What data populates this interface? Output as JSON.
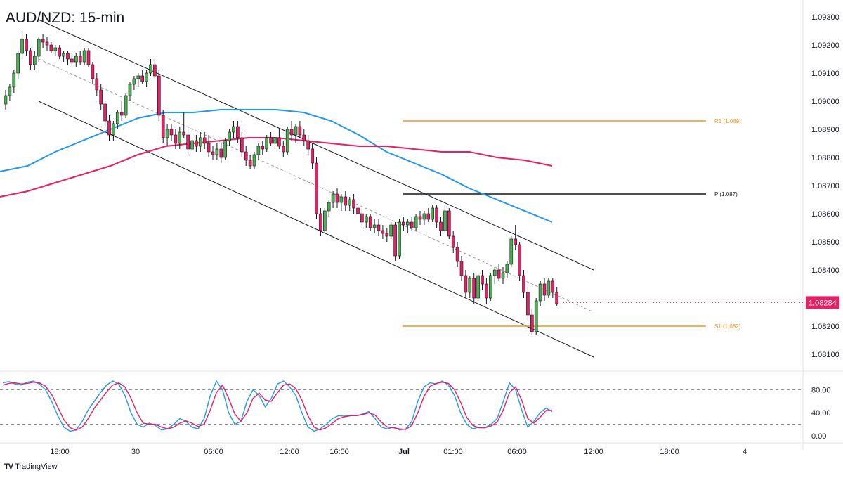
{
  "chart_data": {
    "type": "candlestick",
    "title": "AUD/NZD: 15-min",
    "price_axis": {
      "ticks": [
        "1.09300",
        "1.09200",
        "1.09100",
        "1.09000",
        "1.08900",
        "1.08800",
        "1.08700",
        "1.08600",
        "1.08500",
        "1.08400",
        "1.08200",
        "1.08100"
      ],
      "tick_values": [
        1.093,
        1.092,
        1.091,
        1.09,
        1.089,
        1.088,
        1.087,
        1.086,
        1.085,
        1.084,
        1.082,
        1.081
      ],
      "range": [
        1.0804,
        1.0936
      ]
    },
    "last_price": {
      "label": "1.08284",
      "value": 1.08284,
      "color": "#e91e63"
    },
    "time_axis": {
      "labels": [
        "18:00",
        "30",
        "06:00",
        "12:00",
        "16:00",
        "Jul",
        "01:00",
        "06:00",
        "12:00",
        "18:00",
        "4"
      ]
    },
    "levels": [
      {
        "name": "R1",
        "label": "R1 (1.089)",
        "value": 1.0893,
        "color": "#f7931a"
      },
      {
        "name": "P",
        "label": "P (1.087)",
        "value": 1.0867,
        "color": "#131722"
      },
      {
        "name": "S1",
        "label": "S1 (1.082)",
        "value": 1.082,
        "color": "#f7931a"
      }
    ],
    "channel": {
      "upper": [
        [
          1.0929,
          0
        ],
        [
          1.084,
          1
        ]
      ],
      "middle": [
        [
          1.0915,
          0
        ],
        [
          1.0825,
          1
        ]
      ],
      "lower": [
        [
          1.09,
          0
        ],
        [
          1.0809,
          1
        ]
      ]
    },
    "candles": [
      [
        1.0899,
        1.0904,
        1.0897,
        1.0902
      ],
      [
        1.0902,
        1.0906,
        1.09,
        1.0905
      ],
      [
        1.0905,
        1.0911,
        1.0903,
        1.091
      ],
      [
        1.091,
        1.0918,
        1.0908,
        1.0917
      ],
      [
        1.0917,
        1.0925,
        1.0915,
        1.0922
      ],
      [
        1.0922,
        1.0924,
        1.0916,
        1.0918
      ],
      [
        1.0918,
        1.0919,
        1.0911,
        1.0913
      ],
      [
        1.0913,
        1.0918,
        1.0911,
        1.0916
      ],
      [
        1.0916,
        1.0923,
        1.0914,
        1.0922
      ],
      [
        1.0922,
        1.0924,
        1.0919,
        1.0921
      ],
      [
        1.0921,
        1.0923,
        1.0918,
        1.092
      ],
      [
        1.092,
        1.0921,
        1.0917,
        1.0918
      ],
      [
        1.0918,
        1.092,
        1.0916,
        1.0919
      ],
      [
        1.0919,
        1.092,
        1.0915,
        1.0916
      ],
      [
        1.0916,
        1.0918,
        1.0914,
        1.0917
      ],
      [
        1.0917,
        1.0918,
        1.0913,
        1.0915
      ],
      [
        1.0915,
        1.0917,
        1.0912,
        1.0914
      ],
      [
        1.0914,
        1.0917,
        1.0912,
        1.0916
      ],
      [
        1.0916,
        1.0918,
        1.0913,
        1.0914
      ],
      [
        1.0914,
        1.0919,
        1.0913,
        1.0918
      ],
      [
        1.0918,
        1.0919,
        1.0912,
        1.0913
      ],
      [
        1.0913,
        1.0914,
        1.0906,
        1.0908
      ],
      [
        1.0908,
        1.091,
        1.0902,
        1.0904
      ],
      [
        1.0904,
        1.0906,
        1.0897,
        1.0899
      ],
      [
        1.0899,
        1.09,
        1.0891,
        1.0893
      ],
      [
        1.0893,
        1.0895,
        1.0886,
        1.0888
      ],
      [
        1.0888,
        1.0893,
        1.0886,
        1.0892
      ],
      [
        1.0892,
        1.0897,
        1.089,
        1.0896
      ],
      [
        1.0896,
        1.09,
        1.0893,
        1.0895
      ],
      [
        1.0895,
        1.0903,
        1.0894,
        1.0902
      ],
      [
        1.0902,
        1.0907,
        1.09,
        1.0906
      ],
      [
        1.0906,
        1.0909,
        1.0904,
        1.0908
      ],
      [
        1.0908,
        1.091,
        1.0905,
        1.0909
      ],
      [
        1.0909,
        1.0911,
        1.0906,
        1.0907
      ],
      [
        1.0907,
        1.0911,
        1.0905,
        1.091
      ],
      [
        1.091,
        1.0915,
        1.0909,
        1.0913
      ],
      [
        1.0913,
        1.0915,
        1.0908,
        1.0909
      ],
      [
        1.0909,
        1.0911,
        1.0893,
        1.0895
      ],
      [
        1.0895,
        1.0897,
        1.0885,
        1.0887
      ],
      [
        1.0887,
        1.0892,
        1.0884,
        1.089
      ],
      [
        1.089,
        1.0892,
        1.0886,
        1.0888
      ],
      [
        1.0888,
        1.089,
        1.0883,
        1.0885
      ],
      [
        1.0885,
        1.0891,
        1.0883,
        1.0889
      ],
      [
        1.0889,
        1.0896,
        1.0887,
        1.0888
      ],
      [
        1.0888,
        1.089,
        1.0881,
        1.0883
      ],
      [
        1.0883,
        1.0887,
        1.088,
        1.0886
      ],
      [
        1.0886,
        1.0888,
        1.0882,
        1.0884
      ],
      [
        1.0884,
        1.0889,
        1.0882,
        1.0887
      ],
      [
        1.0887,
        1.0889,
        1.0883,
        1.0885
      ],
      [
        1.0885,
        1.0888,
        1.088,
        1.0882
      ],
      [
        1.0882,
        1.0884,
        1.0879,
        1.0881
      ],
      [
        1.0881,
        1.0885,
        1.0879,
        1.0883
      ],
      [
        1.0883,
        1.0885,
        1.0878,
        1.088
      ],
      [
        1.088,
        1.0887,
        1.0879,
        1.0886
      ],
      [
        1.0886,
        1.089,
        1.0884,
        1.0889
      ],
      [
        1.0889,
        1.0893,
        1.0887,
        1.0891
      ],
      [
        1.0891,
        1.0893,
        1.0885,
        1.0887
      ],
      [
        1.0887,
        1.0889,
        1.088,
        1.0882
      ],
      [
        1.0882,
        1.0884,
        1.0877,
        1.0879
      ],
      [
        1.0879,
        1.0881,
        1.0876,
        1.0877
      ],
      [
        1.0877,
        1.0882,
        1.0876,
        1.0881
      ],
      [
        1.0881,
        1.0885,
        1.0879,
        1.0884
      ],
      [
        1.0884,
        1.0886,
        1.0881,
        1.0883
      ],
      [
        1.0883,
        1.0888,
        1.0882,
        1.0887
      ],
      [
        1.0887,
        1.0889,
        1.0884,
        1.0885
      ],
      [
        1.0885,
        1.0888,
        1.0883,
        1.0887
      ],
      [
        1.0887,
        1.089,
        1.0883,
        1.0884
      ],
      [
        1.0884,
        1.0886,
        1.088,
        1.0882
      ],
      [
        1.0882,
        1.0891,
        1.0881,
        1.089
      ],
      [
        1.089,
        1.0893,
        1.0886,
        1.0888
      ],
      [
        1.0888,
        1.0892,
        1.0885,
        1.0891
      ],
      [
        1.0891,
        1.0893,
        1.0887,
        1.0888
      ],
      [
        1.0888,
        1.089,
        1.0884,
        1.0886
      ],
      [
        1.0886,
        1.0888,
        1.0881,
        1.0883
      ],
      [
        1.0883,
        1.0885,
        1.0876,
        1.0878
      ],
      [
        1.0878,
        1.088,
        1.0858,
        1.086
      ],
      [
        1.086,
        1.0862,
        1.0852,
        1.0854
      ],
      [
        1.0854,
        1.0862,
        1.0853,
        1.0861
      ],
      [
        1.0861,
        1.0865,
        1.0859,
        1.0864
      ],
      [
        1.0864,
        1.0868,
        1.0862,
        1.0867
      ],
      [
        1.0867,
        1.0869,
        1.0862,
        1.0864
      ],
      [
        1.0864,
        1.0867,
        1.0861,
        1.0866
      ],
      [
        1.0866,
        1.0868,
        1.0861,
        1.0863
      ],
      [
        1.0863,
        1.0866,
        1.0861,
        1.0865
      ],
      [
        1.0865,
        1.0867,
        1.086,
        1.0862
      ],
      [
        1.0862,
        1.0864,
        1.0858,
        1.086
      ],
      [
        1.086,
        1.0862,
        1.0855,
        1.0857
      ],
      [
        1.0857,
        1.086,
        1.0855,
        1.0859
      ],
      [
        1.0859,
        1.086,
        1.0854,
        1.0855
      ],
      [
        1.0855,
        1.0858,
        1.0853,
        1.0856
      ],
      [
        1.0856,
        1.0858,
        1.0852,
        1.0854
      ],
      [
        1.0854,
        1.0856,
        1.0851,
        1.0853
      ],
      [
        1.0853,
        1.0855,
        1.085,
        1.0852
      ],
      [
        1.0852,
        1.0857,
        1.0851,
        1.0856
      ],
      [
        1.0856,
        1.0857,
        1.0843,
        1.0845
      ],
      [
        1.0845,
        1.0858,
        1.0844,
        1.0857
      ],
      [
        1.0857,
        1.0859,
        1.0854,
        1.0856
      ],
      [
        1.0856,
        1.0858,
        1.0853,
        1.0857
      ],
      [
        1.0857,
        1.0859,
        1.0854,
        1.0855
      ],
      [
        1.0855,
        1.086,
        1.0854,
        1.0859
      ],
      [
        1.0859,
        1.0861,
        1.0856,
        1.0858
      ],
      [
        1.0858,
        1.0861,
        1.0856,
        1.086
      ],
      [
        1.086,
        1.0862,
        1.0857,
        1.0858
      ],
      [
        1.0858,
        1.0863,
        1.0857,
        1.0862
      ],
      [
        1.0862,
        1.0863,
        1.0855,
        1.0857
      ],
      [
        1.0857,
        1.0859,
        1.0852,
        1.0854
      ],
      [
        1.0854,
        1.0863,
        1.0853,
        1.0861
      ],
      [
        1.0861,
        1.0862,
        1.0851,
        1.0852
      ],
      [
        1.0852,
        1.0854,
        1.0846,
        1.0848
      ],
      [
        1.0848,
        1.085,
        1.0841,
        1.0843
      ],
      [
        1.0843,
        1.0845,
        1.0836,
        1.0838
      ],
      [
        1.0838,
        1.084,
        1.083,
        1.0832
      ],
      [
        1.0832,
        1.0838,
        1.083,
        1.0837
      ],
      [
        1.0837,
        1.0839,
        1.0828,
        1.083
      ],
      [
        1.083,
        1.0839,
        1.0829,
        1.0838
      ],
      [
        1.0838,
        1.084,
        1.0833,
        1.0835
      ],
      [
        1.0835,
        1.0837,
        1.0828,
        1.083
      ],
      [
        1.083,
        1.0839,
        1.0829,
        1.0838
      ],
      [
        1.0838,
        1.0841,
        1.0835,
        1.084
      ],
      [
        1.084,
        1.0842,
        1.0836,
        1.0837
      ],
      [
        1.0837,
        1.0841,
        1.0835,
        1.0839
      ],
      [
        1.0839,
        1.0843,
        1.0837,
        1.0842
      ],
      [
        1.0842,
        1.0852,
        1.0841,
        1.0851
      ],
      [
        1.0851,
        1.0856,
        1.0847,
        1.0849
      ],
      [
        1.0849,
        1.085,
        1.0836,
        1.0838
      ],
      [
        1.0838,
        1.084,
        1.083,
        1.0832
      ],
      [
        1.0832,
        1.0834,
        1.0822,
        1.0824
      ],
      [
        1.0824,
        1.0826,
        1.0817,
        1.0818
      ],
      [
        1.0818,
        1.083,
        1.0817,
        1.0829
      ],
      [
        1.0829,
        1.0836,
        1.0827,
        1.0835
      ],
      [
        1.0835,
        1.0837,
        1.0829,
        1.0831
      ],
      [
        1.0831,
        1.0837,
        1.083,
        1.0836
      ],
      [
        1.0836,
        1.0837,
        1.083,
        1.0832
      ],
      [
        1.0832,
        1.0834,
        1.0827,
        1.0828
      ]
    ],
    "sma_fast": {
      "color": "#2196f3",
      "points": [
        [
          0,
          1.0875
        ],
        [
          0.05,
          1.0877
        ],
        [
          0.1,
          1.0882
        ],
        [
          0.15,
          1.0886
        ],
        [
          0.2,
          1.089
        ],
        [
          0.25,
          1.0894
        ],
        [
          0.3,
          1.0896
        ],
        [
          0.35,
          1.0896
        ],
        [
          0.4,
          1.0897
        ],
        [
          0.45,
          1.0897
        ],
        [
          0.5,
          1.0897
        ],
        [
          0.55,
          1.0896
        ],
        [
          0.6,
          1.0893
        ],
        [
          0.65,
          1.0888
        ],
        [
          0.7,
          1.0882
        ],
        [
          0.75,
          1.0878
        ],
        [
          0.8,
          1.0874
        ],
        [
          0.85,
          1.0869
        ],
        [
          0.9,
          1.0865
        ],
        [
          0.95,
          1.0861
        ],
        [
          1.0,
          1.0857
        ]
      ]
    },
    "sma_slow": {
      "color": "#e91e63",
      "points": [
        [
          0,
          1.0866
        ],
        [
          0.05,
          1.0868
        ],
        [
          0.1,
          1.0871
        ],
        [
          0.15,
          1.0874
        ],
        [
          0.2,
          1.0877
        ],
        [
          0.25,
          1.0881
        ],
        [
          0.3,
          1.0884
        ],
        [
          0.35,
          1.0885
        ],
        [
          0.4,
          1.0886
        ],
        [
          0.45,
          1.0887
        ],
        [
          0.5,
          1.0887
        ],
        [
          0.55,
          1.0886
        ],
        [
          0.6,
          1.0885
        ],
        [
          0.65,
          1.0884
        ],
        [
          0.7,
          1.0884
        ],
        [
          0.75,
          1.0883
        ],
        [
          0.8,
          1.0882
        ],
        [
          0.85,
          1.0882
        ],
        [
          0.9,
          1.088
        ],
        [
          0.95,
          1.0879
        ],
        [
          1.0,
          1.0877
        ]
      ]
    },
    "stochastic": {
      "levels_labels": [
        "80.00",
        "40.00",
        "0.00"
      ],
      "level_values": [
        80,
        40,
        0
      ],
      "overbought": 80,
      "oversold": 20,
      "k_color": "#2196f3",
      "d_color": "#e91e63",
      "k": [
        92,
        94,
        90,
        88,
        93,
        95,
        90,
        80,
        60,
        35,
        15,
        8,
        10,
        25,
        45,
        60,
        75,
        88,
        95,
        90,
        70,
        40,
        20,
        15,
        22,
        18,
        10,
        12,
        20,
        30,
        25,
        15,
        12,
        30,
        70,
        95,
        80,
        40,
        20,
        25,
        60,
        80,
        70,
        50,
        65,
        90,
        95,
        85,
        70,
        40,
        15,
        8,
        12,
        20,
        30,
        35,
        34,
        36,
        35,
        38,
        42,
        30,
        15,
        12,
        15,
        10,
        12,
        25,
        60,
        85,
        92,
        90,
        95,
        88,
        70,
        40,
        20,
        12,
        15,
        14,
        20,
        30,
        60,
        92,
        80,
        45,
        15,
        25,
        40,
        48,
        42
      ],
      "d": [
        88,
        91,
        92,
        90,
        91,
        93,
        92,
        86,
        72,
        50,
        28,
        14,
        10,
        15,
        30,
        48,
        62,
        76,
        88,
        92,
        85,
        65,
        40,
        22,
        20,
        20,
        15,
        12,
        15,
        22,
        26,
        22,
        16,
        20,
        45,
        75,
        88,
        65,
        38,
        25,
        40,
        65,
        74,
        62,
        60,
        75,
        88,
        90,
        82,
        62,
        35,
        15,
        10,
        14,
        22,
        30,
        33,
        35,
        35,
        37,
        40,
        36,
        24,
        15,
        14,
        12,
        11,
        18,
        40,
        68,
        86,
        91,
        93,
        91,
        80,
        58,
        32,
        18,
        14,
        14,
        17,
        24,
        45,
        75,
        85,
        62,
        30,
        22,
        32,
        44,
        44
      ]
    }
  }
}
